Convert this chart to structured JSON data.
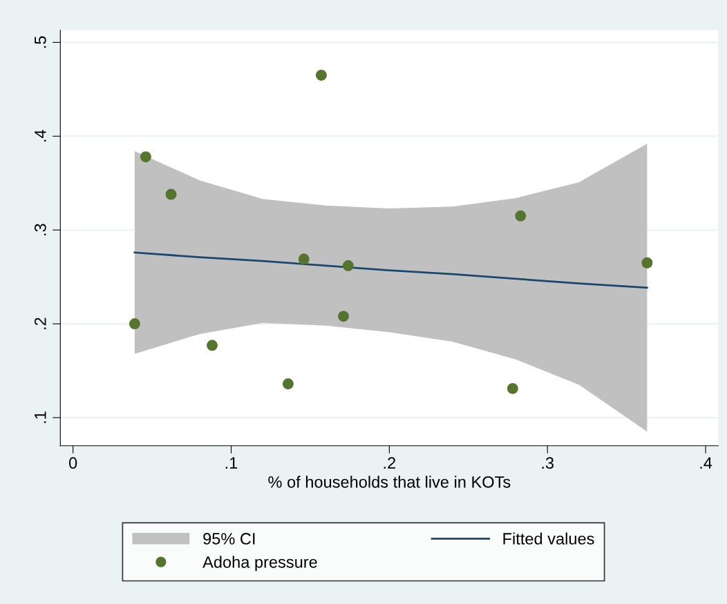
{
  "chart_data": {
    "type": "scatter",
    "xlabel": "% of households that live in KOTs",
    "xlim": [
      -0.008,
      0.408
    ],
    "ylim": [
      0.07,
      0.513
    ],
    "xticks": [
      {
        "value": 0,
        "label": "0"
      },
      {
        "value": 0.1,
        "label": ".1"
      },
      {
        "value": 0.2,
        "label": ".2"
      },
      {
        "value": 0.3,
        "label": ".3"
      },
      {
        "value": 0.4,
        "label": ".4"
      }
    ],
    "yticks": [
      {
        "value": 0.1,
        "label": ".1"
      },
      {
        "value": 0.2,
        "label": ".2"
      },
      {
        "value": 0.3,
        "label": ".3"
      },
      {
        "value": 0.4,
        "label": ".4"
      },
      {
        "value": 0.5,
        "label": ".5"
      }
    ],
    "grid": "y",
    "legend": "bottom",
    "annotations": [
      "95% CI"
    ],
    "series": [
      {
        "name": "Fitted values",
        "type": "line",
        "color": "#1a476f",
        "x": [
          0.039,
          0.08,
          0.12,
          0.16,
          0.2,
          0.24,
          0.28,
          0.32,
          0.363
        ],
        "values": [
          0.276,
          0.271,
          0.267,
          0.262,
          0.257,
          0.253,
          0.248,
          0.243,
          0.2385
        ],
        "lower": [
          0.168,
          0.189,
          0.201,
          0.198,
          0.191,
          0.181,
          0.162,
          0.135,
          0.085
        ],
        "upper": [
          0.384,
          0.353,
          0.333,
          0.326,
          0.323,
          0.325,
          0.334,
          0.351,
          0.392
        ]
      },
      {
        "name": "Adoha pressure",
        "marker": "circle",
        "color": "#55752f",
        "x": [
          0.039,
          0.046,
          0.062,
          0.088,
          0.136,
          0.146,
          0.157,
          0.171,
          0.174,
          0.278,
          0.283,
          0.363
        ],
        "values": [
          0.2,
          0.378,
          0.338,
          0.177,
          0.136,
          0.269,
          0.465,
          0.208,
          0.262,
          0.131,
          0.315,
          0.265
        ]
      }
    ]
  }
}
